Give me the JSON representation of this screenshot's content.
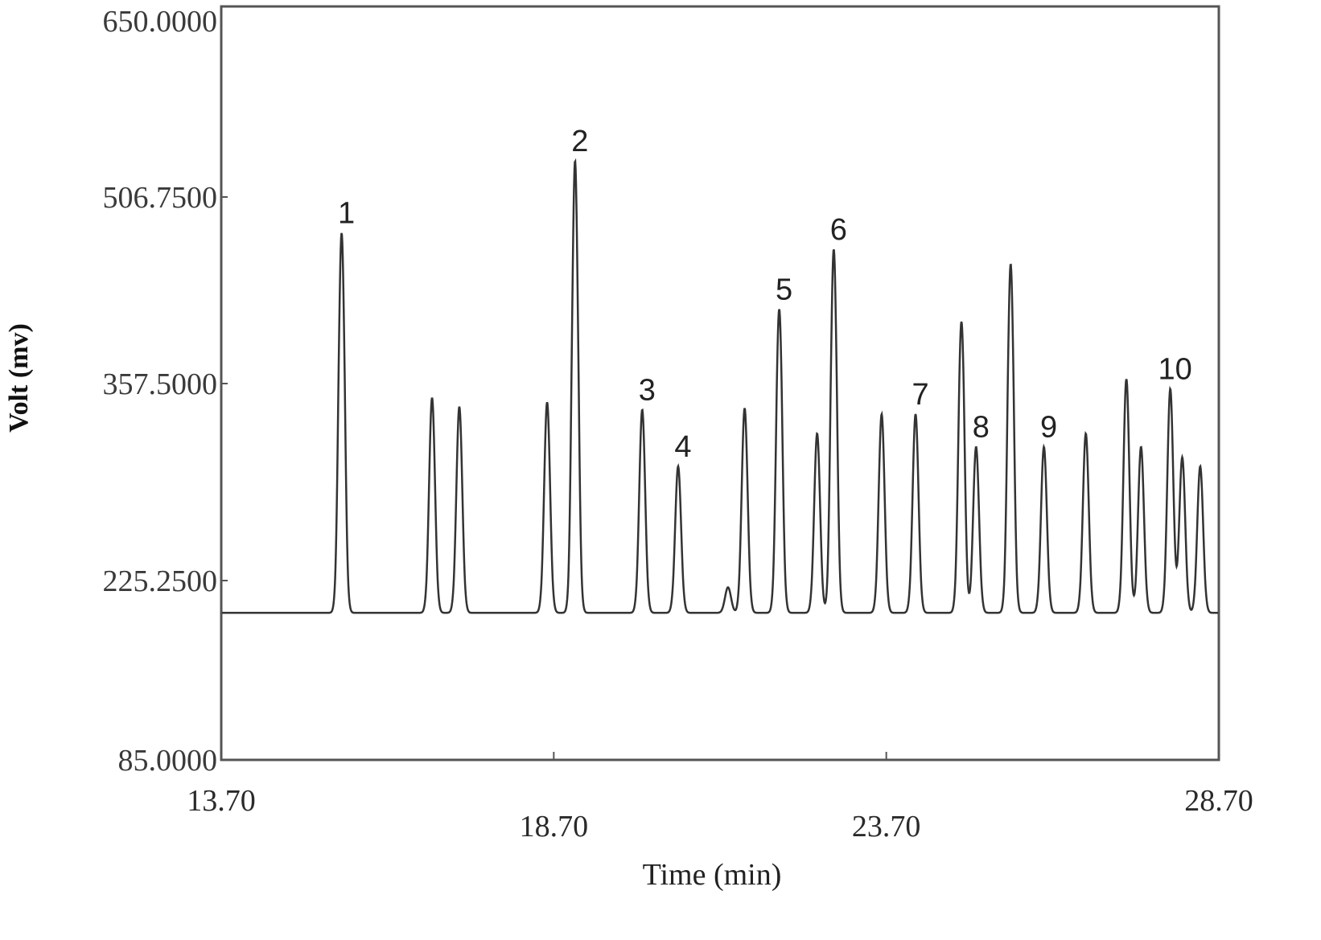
{
  "chart_data": {
    "type": "line",
    "title": "",
    "xlabel": "Time (min)",
    "ylabel": "Volt (mv)",
    "xlim": [
      13.7,
      28.7
    ],
    "ylim": [
      85.0,
      650.0
    ],
    "x_ticks": [
      "13.70",
      "18.70",
      "23.70",
      "28.70"
    ],
    "x_tick_values": [
      13.7,
      18.7,
      23.7,
      28.7
    ],
    "y_ticks": [
      "650.0000",
      "506.7500",
      "357.5000",
      "225.2500",
      "85.0000"
    ],
    "y_tick_values": [
      650.0,
      506.75,
      357.5,
      225.25,
      85.0
    ],
    "grid": false,
    "baseline_mv": 200,
    "line_color": "#333333",
    "peaks": [
      {
        "time": 15.51,
        "height": 478,
        "label": "1"
      },
      {
        "time": 16.87,
        "height": 348,
        "label": ""
      },
      {
        "time": 17.28,
        "height": 342,
        "label": ""
      },
      {
        "time": 18.6,
        "height": 345,
        "label": ""
      },
      {
        "time": 19.02,
        "height": 534,
        "label": "2"
      },
      {
        "time": 20.03,
        "height": 340,
        "label": "3"
      },
      {
        "time": 20.57,
        "height": 302,
        "label": "4"
      },
      {
        "time": 21.32,
        "height": 220,
        "label": ""
      },
      {
        "time": 21.57,
        "height": 341,
        "label": ""
      },
      {
        "time": 22.09,
        "height": 417,
        "label": "5"
      },
      {
        "time": 22.66,
        "height": 324,
        "label": ""
      },
      {
        "time": 22.91,
        "height": 465,
        "label": "6"
      },
      {
        "time": 23.63,
        "height": 337,
        "label": ""
      },
      {
        "time": 24.14,
        "height": 337,
        "label": "7"
      },
      {
        "time": 24.83,
        "height": 407,
        "label": ""
      },
      {
        "time": 25.05,
        "height": 315,
        "label": "8"
      },
      {
        "time": 25.57,
        "height": 453,
        "label": ""
      },
      {
        "time": 26.07,
        "height": 315,
        "label": "9"
      },
      {
        "time": 26.7,
        "height": 324,
        "label": ""
      },
      {
        "time": 27.31,
        "height": 361,
        "label": ""
      },
      {
        "time": 27.53,
        "height": 315,
        "label": ""
      },
      {
        "time": 27.97,
        "height": 354,
        "label": "10"
      },
      {
        "time": 28.15,
        "height": 308,
        "label": ""
      },
      {
        "time": 28.42,
        "height": 302,
        "label": ""
      }
    ]
  }
}
